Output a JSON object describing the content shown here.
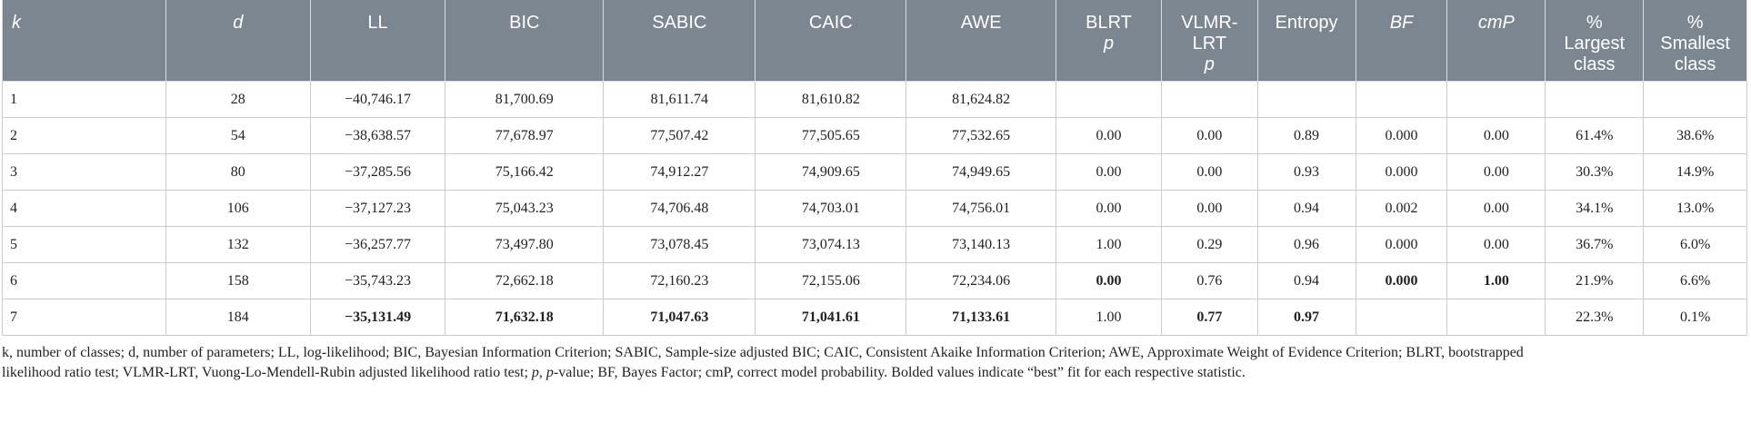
{
  "headers": [
    {
      "label": "k",
      "italic": true,
      "align": "left"
    },
    {
      "label": "d",
      "italic": true,
      "align": "center"
    },
    {
      "label": "LL",
      "italic": false,
      "align": "center"
    },
    {
      "label": "BIC",
      "italic": false,
      "align": "center"
    },
    {
      "label": "SABIC",
      "italic": false,
      "align": "center"
    },
    {
      "label": "CAIC",
      "italic": false,
      "align": "center"
    },
    {
      "label": "AWE",
      "italic": false,
      "align": "center"
    },
    {
      "label": "BLRT",
      "sub": "p",
      "italic": false,
      "align": "center"
    },
    {
      "label": "VLMR-\nLRT",
      "sub": "p",
      "italic": false,
      "align": "center"
    },
    {
      "label": "Entropy",
      "italic": false,
      "align": "center"
    },
    {
      "label": "BF",
      "italic": true,
      "align": "center"
    },
    {
      "label": "cmP",
      "italic": true,
      "align": "center"
    },
    {
      "label": "%\nLargest\nclass",
      "italic": false,
      "align": "center"
    },
    {
      "label": "%\nSmallest\nclass",
      "italic": false,
      "align": "center"
    }
  ],
  "rows": [
    {
      "cells": [
        "1",
        "28",
        "−40,746.17",
        "81,700.69",
        "81,611.74",
        "81,610.82",
        "81,624.82",
        "",
        "",
        "",
        "",
        "",
        "",
        ""
      ],
      "bold": []
    },
    {
      "cells": [
        "2",
        "54",
        "−38,638.57",
        "77,678.97",
        "77,507.42",
        "77,505.65",
        "77,532.65",
        "0.00",
        "0.00",
        "0.89",
        "0.000",
        "0.00",
        "61.4%",
        "38.6%"
      ],
      "bold": []
    },
    {
      "cells": [
        "3",
        "80",
        "−37,285.56",
        "75,166.42",
        "74,912.27",
        "74,909.65",
        "74,949.65",
        "0.00",
        "0.00",
        "0.93",
        "0.000",
        "0.00",
        "30.3%",
        "14.9%"
      ],
      "bold": []
    },
    {
      "cells": [
        "4",
        "106",
        "−37,127.23",
        "75,043.23",
        "74,706.48",
        "74,703.01",
        "74,756.01",
        "0.00",
        "0.00",
        "0.94",
        "0.002",
        "0.00",
        "34.1%",
        "13.0%"
      ],
      "bold": []
    },
    {
      "cells": [
        "5",
        "132",
        "−36,257.77",
        "73,497.80",
        "73,078.45",
        "73,074.13",
        "73,140.13",
        "1.00",
        "0.29",
        "0.96",
        "0.000",
        "0.00",
        "36.7%",
        "6.0%"
      ],
      "bold": []
    },
    {
      "cells": [
        "6",
        "158",
        "−35,743.23",
        "72,662.18",
        "72,160.23",
        "72,155.06",
        "72,234.06",
        "0.00",
        "0.76",
        "0.94",
        "0.000",
        "1.00",
        "21.9%",
        "6.6%"
      ],
      "bold": [
        7,
        10,
        11
      ]
    },
    {
      "cells": [
        "7",
        "184",
        "−35,131.49",
        "71,632.18",
        "71,047.63",
        "71,041.61",
        "71,133.61",
        "1.00",
        "0.77",
        "0.97",
        "",
        "",
        "22.3%",
        "0.1%"
      ],
      "bold": [
        2,
        3,
        4,
        5,
        6,
        8,
        9
      ]
    }
  ],
  "footnote": {
    "line1": "k, number of classes; d, number of parameters; LL, log-likelihood; BIC, Bayesian Information Criterion; SABIC, Sample-size adjusted BIC; CAIC, Consistent Akaike Information Criterion; AWE, Approximate Weight of Evidence Criterion; BLRT, bootstrapped",
    "line2_a": "likelihood ratio test; VLMR-LRT, Vuong-Lo-Mendell-Rubin adjusted likelihood ratio test; ",
    "line2_p": "p",
    "line2_b": ", ",
    "line2_pv": "p",
    "line2_c": "-value; BF, Bayes Factor; cmP, correct model probability. Bolded values indicate “best” fit for each respective statistic."
  },
  "colors": {
    "header_bg": "#7c8691",
    "header_text": "#ffffff",
    "border": "#c9ccd0"
  }
}
